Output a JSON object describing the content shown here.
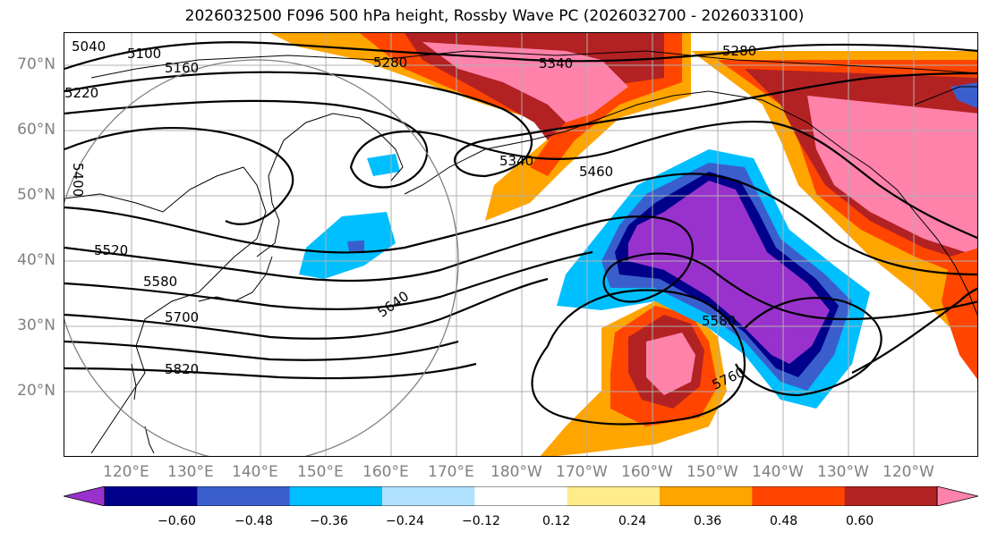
{
  "title": "2026032500 F096 500 hPa height, Rossby Wave PC (2026032700 - 2026033100)",
  "lat_labels": [
    "70°N",
    "60°N",
    "50°N",
    "40°N",
    "30°N",
    "20°N"
  ],
  "lon_labels": [
    "120°E",
    "130°E",
    "140°E",
    "150°E",
    "160°E",
    "170°E",
    "180°W",
    "170°W",
    "160°W",
    "150°W",
    "140°W",
    "130°W",
    "120°W"
  ],
  "contour_labels": [
    "5040",
    "5100",
    "5160",
    "5220",
    "5280",
    "5280",
    "5340",
    "5340",
    "5460",
    "5400",
    "5520",
    "5580",
    "5640",
    "5700",
    "5820",
    "5580",
    "5760"
  ],
  "colorbar": {
    "ticks": [
      "−0.60",
      "−0.48",
      "−0.36",
      "−0.24",
      "−0.12",
      "0.12",
      "0.24",
      "0.36",
      "0.48",
      "0.60"
    ],
    "colors": [
      "#9932cc",
      "#00008b",
      "#3a5fcd",
      "#00bfff",
      "#b0e2ff",
      "#ffffff",
      "#ffec8b",
      "#ffa500",
      "#ff4500",
      "#b22222",
      "#ff82ab"
    ]
  }
}
